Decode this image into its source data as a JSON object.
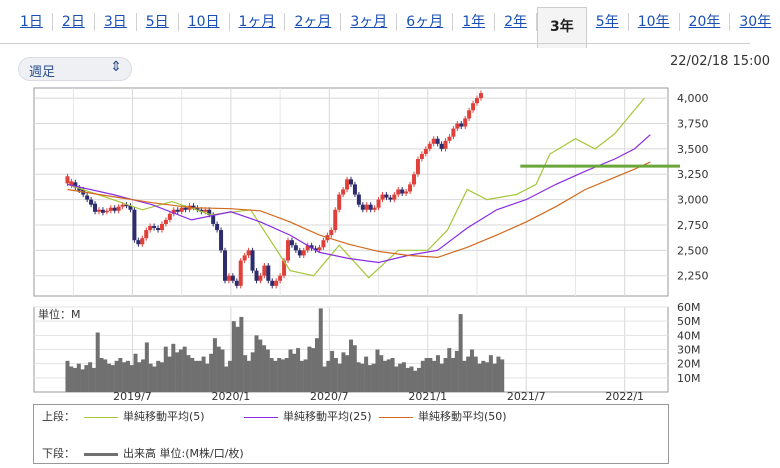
{
  "tabs": [
    "1日",
    "2日",
    "3日",
    "5日",
    "10日",
    "1ヶ月",
    "2ヶ月",
    "3ヶ月",
    "6ヶ月",
    "1年",
    "2年",
    "3年",
    "5年",
    "10年",
    "20年",
    "30年"
  ],
  "active_tab": "3年",
  "selector": {
    "label": "週足",
    "icon": "chevron-up-down-icon"
  },
  "datetime": "22/02/18 15:00",
  "colors": {
    "up": "#e0403a",
    "down": "#2d2d6e",
    "ma5": "#a4c639",
    "ma25": "#8a2be2",
    "ma50": "#d2691e",
    "volume": "#707070",
    "support": "#6aa63a"
  },
  "chart_data": {
    "type": "candlestick",
    "price": {
      "ylim": [
        2050,
        4100
      ],
      "yticks": [
        "4,000",
        "3,750",
        "3,500",
        "3,250",
        "3,000",
        "2,750",
        "2,500",
        "2,250"
      ],
      "ytick_values": [
        4000,
        3750,
        3500,
        3250,
        3000,
        2750,
        2500,
        2250
      ],
      "xticks": [
        "2019/7",
        "2020/1",
        "2020/7",
        "2021/1",
        "2021/7",
        "2022/1"
      ],
      "support_level": 3330,
      "series": [
        {
          "name": "単純移動平均(5)",
          "x": [
            2019.17,
            2019.4,
            2019.55,
            2019.7,
            2019.9,
            2020.1,
            2020.2,
            2020.3,
            2020.42,
            2020.55,
            2020.7,
            2020.85,
            2021.0,
            2021.1,
            2021.2,
            2021.3,
            2021.45,
            2021.55,
            2021.62,
            2021.75,
            2021.85,
            2021.95,
            2022.1
          ],
          "y": [
            3150,
            3000,
            2900,
            2980,
            2850,
            2900,
            2600,
            2300,
            2250,
            2550,
            2230,
            2500,
            2500,
            2700,
            3100,
            3000,
            3050,
            3150,
            3450,
            3600,
            3500,
            3650,
            4000
          ]
        },
        {
          "name": "単純移動平均(25)",
          "x": [
            2019.17,
            2019.4,
            2019.6,
            2019.8,
            2020.0,
            2020.15,
            2020.3,
            2020.45,
            2020.6,
            2020.75,
            2020.9,
            2021.05,
            2021.2,
            2021.35,
            2021.5,
            2021.65,
            2021.8,
            2021.95,
            2022.05,
            2022.13
          ],
          "y": [
            3150,
            3050,
            2950,
            2800,
            2880,
            2780,
            2650,
            2480,
            2420,
            2380,
            2450,
            2500,
            2720,
            2900,
            3000,
            3150,
            3280,
            3400,
            3500,
            3640
          ]
        },
        {
          "name": "単純移動平均(50)",
          "x": [
            2019.17,
            2019.4,
            2019.6,
            2019.8,
            2020.0,
            2020.15,
            2020.3,
            2020.45,
            2020.6,
            2020.75,
            2020.9,
            2021.05,
            2021.2,
            2021.35,
            2021.5,
            2021.65,
            2021.8,
            2021.95,
            2022.05,
            2022.13
          ],
          "y": [
            3100,
            3030,
            2970,
            2920,
            2910,
            2890,
            2780,
            2650,
            2560,
            2490,
            2450,
            2430,
            2530,
            2650,
            2780,
            2930,
            3100,
            3220,
            3300,
            3370
          ]
        }
      ],
      "candles": [
        [
          2019.17,
          3160,
          3230
        ],
        [
          2019.19,
          3140,
          3180
        ],
        [
          2019.21,
          3170,
          3120
        ],
        [
          2019.23,
          3120,
          3090
        ],
        [
          2019.25,
          3100,
          3050
        ],
        [
          2019.27,
          3040,
          3000
        ],
        [
          2019.29,
          3000,
          2950
        ],
        [
          2019.31,
          2960,
          2880
        ],
        [
          2019.33,
          2880,
          2900
        ],
        [
          2019.35,
          2900,
          2870
        ],
        [
          2019.37,
          2880,
          2890
        ],
        [
          2019.39,
          2890,
          2920
        ],
        [
          2019.41,
          2920,
          2890
        ],
        [
          2019.43,
          2890,
          2930
        ],
        [
          2019.45,
          2930,
          2950
        ],
        [
          2019.47,
          2950,
          2940
        ],
        [
          2019.49,
          2940,
          2900
        ],
        [
          2019.51,
          2900,
          2600
        ],
        [
          2019.53,
          2600,
          2560
        ],
        [
          2019.55,
          2560,
          2620
        ],
        [
          2019.57,
          2620,
          2700
        ],
        [
          2019.59,
          2700,
          2740
        ],
        [
          2019.61,
          2740,
          2720
        ],
        [
          2019.63,
          2720,
          2700
        ],
        [
          2019.65,
          2700,
          2760
        ],
        [
          2019.67,
          2760,
          2800
        ],
        [
          2019.69,
          2800,
          2860
        ],
        [
          2019.71,
          2860,
          2900
        ],
        [
          2019.73,
          2900,
          2880
        ],
        [
          2019.75,
          2880,
          2920
        ],
        [
          2019.77,
          2920,
          2900
        ],
        [
          2019.79,
          2900,
          2940
        ],
        [
          2019.81,
          2940,
          2920
        ],
        [
          2019.83,
          2920,
          2900
        ],
        [
          2019.85,
          2900,
          2880
        ],
        [
          2019.87,
          2880,
          2900
        ],
        [
          2019.89,
          2900,
          2850
        ],
        [
          2019.91,
          2850,
          2760
        ],
        [
          2019.93,
          2760,
          2700
        ],
        [
          2019.95,
          2700,
          2500
        ],
        [
          2019.97,
          2500,
          2200
        ],
        [
          2019.99,
          2200,
          2250
        ],
        [
          2020.01,
          2250,
          2200
        ],
        [
          2020.03,
          2200,
          2150
        ],
        [
          2020.05,
          2150,
          2400
        ],
        [
          2020.07,
          2400,
          2450
        ],
        [
          2020.09,
          2450,
          2500
        ],
        [
          2020.11,
          2500,
          2300
        ],
        [
          2020.13,
          2300,
          2200
        ],
        [
          2020.15,
          2200,
          2250
        ],
        [
          2020.17,
          2250,
          2350
        ],
        [
          2020.19,
          2350,
          2200
        ],
        [
          2020.21,
          2200,
          2150
        ],
        [
          2020.23,
          2150,
          2200
        ],
        [
          2020.25,
          2200,
          2250
        ],
        [
          2020.27,
          2250,
          2400
        ],
        [
          2020.29,
          2400,
          2600
        ],
        [
          2020.31,
          2600,
          2550
        ],
        [
          2020.33,
          2550,
          2500
        ],
        [
          2020.35,
          2500,
          2450
        ],
        [
          2020.37,
          2450,
          2500
        ],
        [
          2020.39,
          2500,
          2550
        ],
        [
          2020.41,
          2550,
          2520
        ],
        [
          2020.43,
          2520,
          2500
        ],
        [
          2020.45,
          2500,
          2530
        ],
        [
          2020.47,
          2530,
          2600
        ],
        [
          2020.49,
          2600,
          2650
        ],
        [
          2020.51,
          2650,
          2700
        ],
        [
          2020.53,
          2700,
          2900
        ],
        [
          2020.55,
          2900,
          3050
        ],
        [
          2020.57,
          3050,
          3100
        ],
        [
          2020.59,
          3100,
          3200
        ],
        [
          2020.61,
          3200,
          3150
        ],
        [
          2020.63,
          3150,
          3050
        ],
        [
          2020.65,
          3050,
          2950
        ],
        [
          2020.67,
          2950,
          2900
        ],
        [
          2020.69,
          2900,
          2950
        ],
        [
          2020.71,
          2950,
          2900
        ],
        [
          2020.73,
          2900,
          2920
        ],
        [
          2020.75,
          2920,
          3000
        ],
        [
          2020.77,
          3000,
          3050
        ],
        [
          2020.79,
          3050,
          3020
        ],
        [
          2020.81,
          3020,
          3000
        ],
        [
          2020.83,
          3000,
          3050
        ],
        [
          2020.85,
          3050,
          3100
        ],
        [
          2020.87,
          3100,
          3060
        ],
        [
          2020.89,
          3060,
          3080
        ],
        [
          2020.91,
          3080,
          3150
        ],
        [
          2020.93,
          3150,
          3250
        ],
        [
          2020.95,
          3250,
          3400
        ],
        [
          2020.97,
          3400,
          3450
        ],
        [
          2020.99,
          3450,
          3500
        ],
        [
          2021.01,
          3500,
          3550
        ],
        [
          2021.03,
          3550,
          3600
        ],
        [
          2021.05,
          3600,
          3550
        ],
        [
          2021.07,
          3550,
          3500
        ],
        [
          2021.09,
          3500,
          3580
        ],
        [
          2021.11,
          3580,
          3620
        ],
        [
          2021.13,
          3620,
          3700
        ],
        [
          2021.15,
          3700,
          3750
        ],
        [
          2021.17,
          3750,
          3720
        ],
        [
          2021.19,
          3720,
          3800
        ],
        [
          2021.21,
          3800,
          3880
        ],
        [
          2021.23,
          3880,
          3950
        ],
        [
          2021.25,
          3950,
          4000
        ],
        [
          2021.27,
          4000,
          4050
        ]
      ]
    },
    "volume": {
      "ylim": [
        0,
        60
      ],
      "yticks": [
        "60M",
        "50M",
        "40M",
        "30M",
        "20M",
        "10M"
      ],
      "ytick_values": [
        60,
        50,
        40,
        30,
        20,
        10
      ],
      "x_start": 2019.17,
      "x_step": 0.0192,
      "values": [
        22,
        18,
        17,
        20,
        16,
        19,
        21,
        17,
        42,
        24,
        23,
        20,
        19,
        22,
        24,
        21,
        22,
        19,
        27,
        21,
        23,
        35,
        20,
        18,
        22,
        21,
        32,
        25,
        34,
        28,
        30,
        32,
        26,
        24,
        22,
        22,
        25,
        20,
        27,
        38,
        32,
        30,
        18,
        22,
        50,
        46,
        53,
        26,
        22,
        28,
        40,
        37,
        33,
        30,
        24,
        22,
        24,
        23,
        24,
        30,
        27,
        31,
        22,
        23,
        32,
        31,
        38,
        59,
        18,
        22,
        29,
        24,
        20,
        28,
        26,
        37,
        33,
        21,
        20,
        25,
        19,
        20,
        30,
        26,
        22,
        23,
        24,
        18,
        20,
        21,
        17,
        18,
        15,
        17,
        22,
        24,
        24,
        22,
        26,
        20,
        24,
        31,
        24,
        29,
        55,
        22,
        25,
        30,
        25,
        20,
        22,
        21,
        26,
        20,
        25,
        23
      ]
    }
  },
  "legend": {
    "upper_label": "上段：",
    "lower_label": "下段：",
    "ma5": "単純移動平均(5)",
    "ma25": "単純移動平均(25)",
    "ma50": "単純移動平均(50)",
    "volume": "出来高 単位:(M株/口/枚)"
  },
  "volume_unit_label": "単位：M"
}
